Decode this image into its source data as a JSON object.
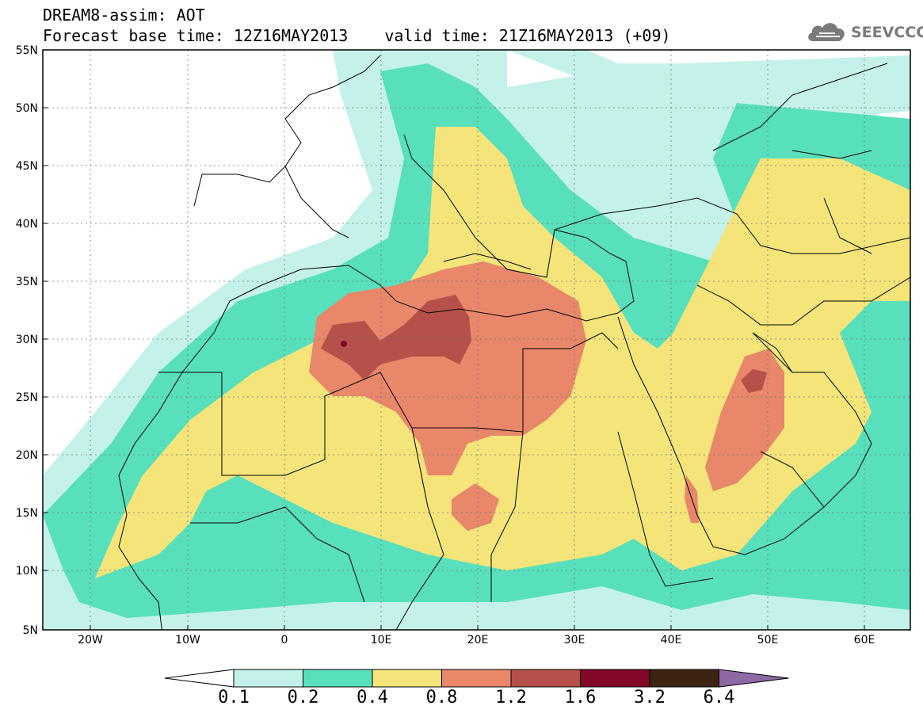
{
  "title": {
    "line1": "DREAM8-assim: AOT",
    "base_time": "Forecast base time: 12Z16MAY2013",
    "valid_time": "valid time: 21Z16MAY2013 (+09)"
  },
  "logo": {
    "text": "SEEVCCC",
    "icon": "cloud-icon"
  },
  "axes": {
    "lat_labels": [
      "55N",
      "50N",
      "45N",
      "40N",
      "35N",
      "30N",
      "25N",
      "20N",
      "15N",
      "10N",
      "5N"
    ],
    "lon_labels": [
      "20W",
      "10W",
      "0",
      "10E",
      "20E",
      "30E",
      "40E",
      "50E",
      "60E"
    ]
  },
  "colorbar": {
    "labels": [
      "0.1",
      "0.2",
      "0.4",
      "0.8",
      "1.2",
      "1.6",
      "3.2",
      "6.4"
    ],
    "colors": [
      "#ffffff",
      "#c4f2ea",
      "#58e0bc",
      "#f5e47a",
      "#e8876a",
      "#b6504a",
      "#820829",
      "#3c2414",
      "#8d69a6"
    ]
  },
  "field_colors": {
    "land_line": "#000000",
    "l1": "#c4f2ea",
    "l2": "#58e0bc",
    "l3": "#f5e47a",
    "l4": "#e8876a",
    "l5": "#b6504a",
    "l6": "#820829"
  }
}
